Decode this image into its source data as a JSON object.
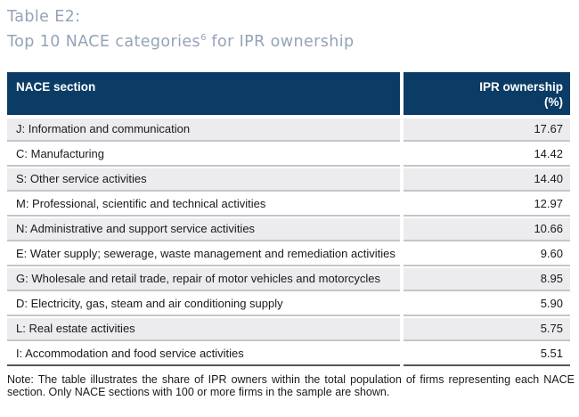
{
  "title": {
    "line1": "Table E2:",
    "line2_prefix": "Top 10 NACE categories",
    "line2_footnote": "6",
    "line2_suffix": " for IPR ownership"
  },
  "table": {
    "headers": {
      "nace": "NACE section",
      "ipr_line1": "IPR ownership",
      "ipr_line2": "(%)"
    },
    "rows": [
      {
        "label": "J: Information and communication",
        "value": "17.67"
      },
      {
        "label": "C: Manufacturing",
        "value": "14.42"
      },
      {
        "label": "S: Other service activities",
        "value": "14.40"
      },
      {
        "label": "M: Professional, scientific and technical activities",
        "value": "12.97"
      },
      {
        "label": "N: Administrative and support service activities",
        "value": "10.66"
      },
      {
        "label": "E: Water supply; sewerage, waste management and remediation activities",
        "value": "9.60"
      },
      {
        "label": "G: Wholesale and retail trade, repair of motor vehicles and motorcycles",
        "value": "8.95"
      },
      {
        "label": "D: Electricity, gas, steam and air conditioning supply",
        "value": "5.90"
      },
      {
        "label": "L: Real estate activities",
        "value": "5.75"
      },
      {
        "label": "I: Accommodation and food service activities",
        "value": "5.51"
      }
    ]
  },
  "note": "Note: The table illustrates the share of IPR owners within the total population of firms representing each NACE section. Only NACE sections with 100 or more firms in the sample are shown.",
  "colors": {
    "header_bg": "#0b3c66",
    "row_alt_bg": "#ececee",
    "row_border": "#c5c5cb",
    "table_bottom_border": "#55565b",
    "title_color": "#94a3b7"
  },
  "chart_data": {
    "type": "table",
    "title": "Top 10 NACE categories for IPR ownership",
    "columns": [
      "NACE section",
      "IPR ownership (%)"
    ],
    "categories": [
      "J: Information and communication",
      "C: Manufacturing",
      "S: Other service activities",
      "M: Professional, scientific and technical activities",
      "N: Administrative and support service activities",
      "E: Water supply; sewerage, waste management and remediation activities",
      "G: Wholesale and retail trade, repair of motor vehicles and motorcycles",
      "D: Electricity, gas, steam and air conditioning supply",
      "L: Real estate activities",
      "I: Accommodation and food service activities"
    ],
    "values": [
      17.67,
      14.42,
      14.4,
      12.97,
      10.66,
      9.6,
      8.95,
      5.9,
      5.75,
      5.51
    ]
  }
}
